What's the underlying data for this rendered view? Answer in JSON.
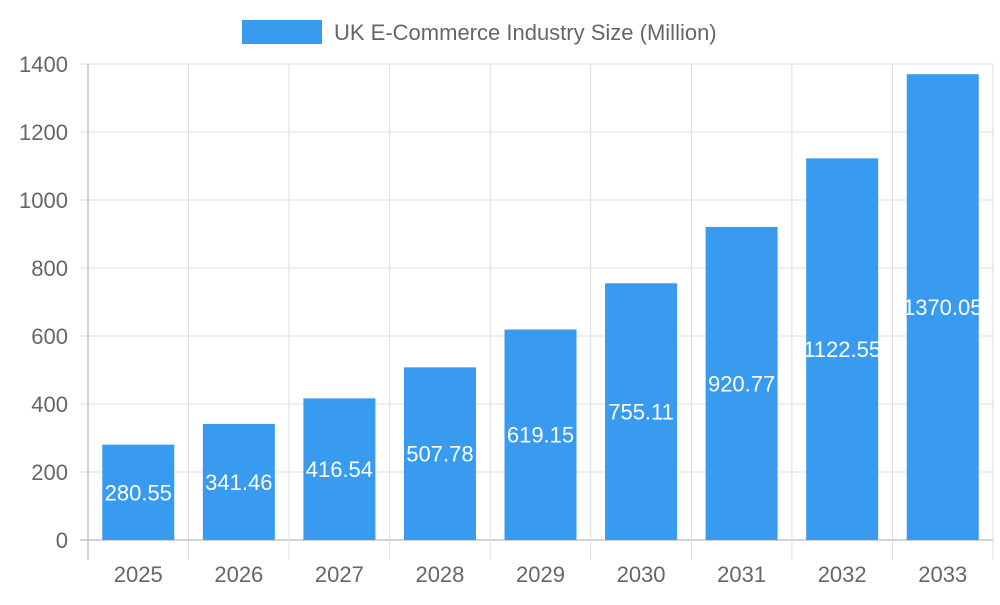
{
  "chart_data": {
    "type": "bar",
    "title": "",
    "xlabel": "",
    "ylabel": "",
    "categories": [
      "2025",
      "2026",
      "2027",
      "2028",
      "2029",
      "2030",
      "2031",
      "2032",
      "2033"
    ],
    "series": [
      {
        "name": "UK E-Commerce Industry Size (Million)",
        "values": [
          280.55,
          341.46,
          416.54,
          507.78,
          619.15,
          755.11,
          920.77,
          1122.55,
          1370.05
        ],
        "color": "#389BEF"
      }
    ],
    "ylim": [
      0,
      1400
    ],
    "yticks": [
      0,
      200,
      400,
      600,
      800,
      1000,
      1200,
      1400
    ],
    "grid": true,
    "legend": "top-center",
    "data_labels": true
  }
}
